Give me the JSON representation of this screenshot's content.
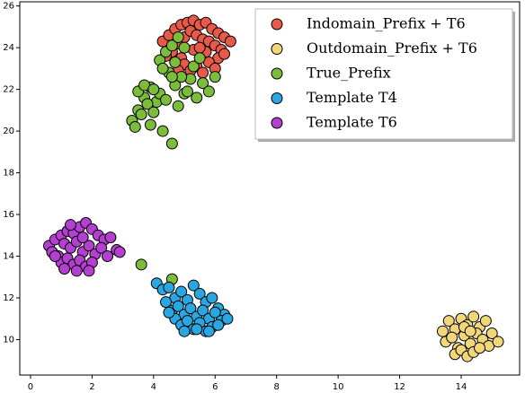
{
  "chart_data": {
    "type": "scatter",
    "xlim": [
      -0.35,
      15.9
    ],
    "ylim": [
      8.3,
      26.2
    ],
    "xticks": [
      0,
      2,
      4,
      6,
      8,
      10,
      12,
      14
    ],
    "yticks": [
      10,
      12,
      14,
      16,
      18,
      20,
      22,
      24,
      26
    ],
    "legend": "upper right",
    "series": [
      {
        "name": "Indomain_Prefix + T6",
        "color": "#e8594a",
        "x": [
          4.3,
          4.5,
          4.7,
          4.9,
          5.1,
          5.3,
          5.5,
          5.7,
          5.9,
          6.1,
          6.3,
          6.5,
          4.6,
          4.8,
          5.0,
          5.2,
          5.4,
          5.6,
          5.8,
          6.0,
          6.2,
          4.4,
          4.9,
          5.3,
          5.7,
          6.1,
          5.0,
          5.4,
          5.8,
          5.2,
          5.6,
          6.0,
          4.8,
          5.5,
          6.3
        ],
        "values": [
          24.3,
          24.6,
          24.9,
          25.1,
          25.2,
          25.3,
          25.1,
          25.2,
          24.9,
          24.7,
          24.5,
          24.3,
          23.8,
          24.2,
          24.5,
          24.8,
          24.6,
          24.4,
          24.3,
          24.1,
          23.9,
          23.6,
          23.5,
          23.9,
          23.8,
          23.5,
          23.2,
          23.1,
          23.3,
          22.9,
          22.8,
          23.0,
          22.9,
          24.0,
          23.7
        ]
      },
      {
        "name": "Outdomain_Prefix + T6",
        "color": "#f2d67a",
        "x": [
          13.4,
          13.6,
          13.8,
          14.0,
          14.2,
          14.4,
          14.6,
          14.8,
          15.0,
          13.5,
          13.7,
          13.9,
          14.1,
          14.3,
          14.5,
          14.7,
          14.9,
          13.8,
          14.0,
          14.2,
          14.4,
          14.6,
          14.1,
          14.3,
          15.2
        ],
        "values": [
          10.4,
          10.9,
          10.5,
          11.0,
          10.7,
          11.1,
          10.6,
          10.9,
          10.3,
          9.9,
          10.1,
          9.6,
          10.2,
          9.8,
          10.3,
          10.0,
          9.7,
          9.3,
          9.5,
          9.2,
          9.4,
          9.6,
          10.6,
          10.4,
          9.9
        ]
      },
      {
        "name": "True_Prefix",
        "color": "#7cbc3c",
        "x": [
          3.3,
          3.5,
          3.7,
          3.9,
          4.1,
          3.4,
          3.6,
          3.8,
          4.0,
          4.2,
          3.5,
          3.9,
          4.3,
          4.6,
          3.7,
          4.0,
          4.4,
          4.8,
          5.0,
          5.2,
          5.4,
          5.6,
          5.8,
          6.0,
          4.5,
          4.7,
          4.9,
          5.1,
          5.3,
          5.5,
          4.2,
          4.4,
          4.6,
          4.8,
          5.0,
          4.3,
          4.7,
          4.6,
          3.6,
          4.6
        ],
        "values": [
          20.5,
          21.0,
          21.6,
          22.1,
          21.4,
          20.2,
          20.8,
          21.3,
          20.9,
          21.8,
          21.9,
          20.3,
          20.0,
          19.4,
          22.2,
          22.0,
          21.5,
          21.2,
          21.8,
          22.5,
          21.6,
          22.3,
          21.9,
          22.6,
          22.8,
          22.2,
          22.6,
          21.9,
          23.1,
          23.5,
          23.4,
          23.8,
          24.1,
          24.5,
          24.0,
          23.0,
          23.3,
          12.9,
          13.6,
          22.6
        ]
      },
      {
        "name": "Template T4",
        "color": "#2aa7e0",
        "x": [
          4.1,
          4.3,
          4.5,
          4.7,
          4.9,
          5.1,
          5.3,
          5.5,
          5.7,
          5.9,
          6.1,
          6.3,
          4.4,
          4.6,
          4.8,
          5.0,
          5.2,
          5.4,
          5.6,
          5.8,
          6.0,
          6.2,
          4.7,
          4.9,
          5.1,
          5.3,
          5.5,
          5.7,
          5.9,
          6.1,
          5.0,
          5.4,
          5.8,
          4.5,
          6.4
        ],
        "values": [
          12.7,
          12.4,
          12.5,
          12.0,
          12.3,
          11.9,
          12.6,
          12.2,
          11.8,
          12.0,
          11.5,
          11.2,
          11.8,
          11.4,
          11.6,
          11.2,
          11.5,
          11.1,
          11.4,
          11.0,
          11.3,
          10.9,
          11.0,
          10.7,
          10.9,
          10.5,
          10.8,
          10.4,
          10.6,
          10.7,
          10.4,
          10.5,
          10.4,
          11.3,
          11.0
        ]
      },
      {
        "name": "Template T6",
        "color": "#b43fd0",
        "x": [
          0.6,
          0.8,
          1.0,
          1.2,
          1.4,
          1.6,
          1.8,
          2.0,
          2.2,
          2.4,
          2.6,
          2.8,
          0.7,
          0.9,
          1.1,
          1.3,
          1.5,
          1.7,
          1.9,
          2.1,
          2.3,
          2.5,
          1.0,
          1.2,
          1.4,
          1.6,
          1.8,
          2.0,
          1.1,
          1.5,
          1.9,
          1.3,
          1.7,
          2.9,
          0.8
        ],
        "values": [
          14.5,
          14.8,
          15.0,
          15.2,
          15.1,
          15.4,
          15.6,
          15.3,
          15.0,
          14.8,
          14.9,
          14.3,
          14.2,
          14.0,
          14.6,
          14.4,
          14.7,
          14.2,
          14.5,
          14.1,
          14.4,
          14.0,
          13.7,
          13.9,
          13.6,
          13.8,
          13.5,
          13.7,
          13.4,
          13.3,
          13.3,
          15.5,
          14.9,
          14.2,
          14.0
        ]
      }
    ]
  }
}
